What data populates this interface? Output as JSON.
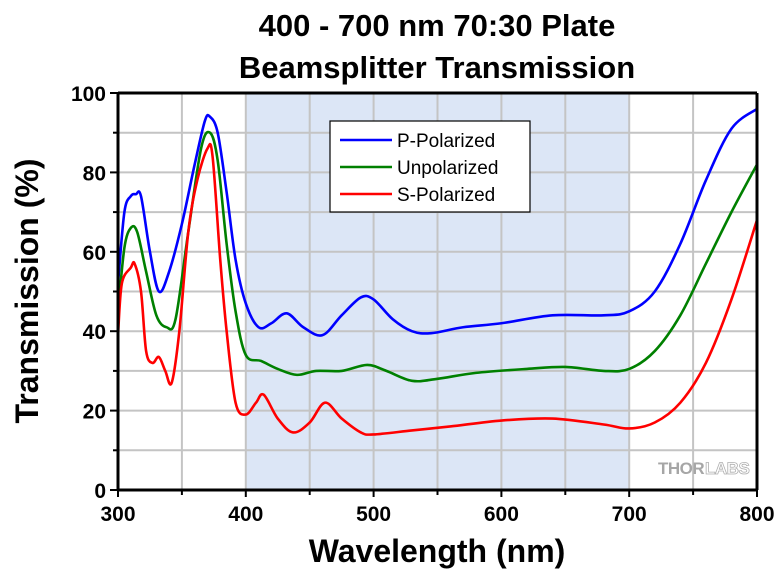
{
  "chart_data": {
    "type": "line",
    "title": [
      "400 - 700 nm 70:30 Plate",
      "Beamsplitter Transmission"
    ],
    "xlabel": "Wavelength (nm)",
    "ylabel": "Transmission (%)",
    "xlim": [
      300,
      800
    ],
    "ylim": [
      0,
      100
    ],
    "xticks": [
      300,
      400,
      500,
      600,
      700,
      800
    ],
    "yticks": [
      0,
      20,
      40,
      60,
      80,
      100
    ],
    "x_minor_step": 50,
    "y_minor_step": 10,
    "grid": true,
    "highlight_band": {
      "range": [
        400,
        700
      ],
      "color": "#dce6f6",
      "meaning": "design wavelength range"
    },
    "legend": {
      "placement": "top-center",
      "entries": [
        "P-Polarized",
        "Unpolarized",
        "S-Polarized"
      ]
    },
    "watermark": {
      "left": "THOR",
      "right": "LABS"
    },
    "series": [
      {
        "name": "P-Polarized",
        "color": "#0000ff",
        "x": [
          300,
          305,
          310,
          314,
          318,
          325,
          332,
          340,
          350,
          360,
          368,
          372,
          378,
          385,
          392,
          400,
          410,
          420,
          432,
          445,
          460,
          475,
          490,
          500,
          515,
          530,
          545,
          570,
          600,
          640,
          680,
          700,
          720,
          740,
          760,
          780,
          800
        ],
        "y": [
          52,
          70,
          74,
          74.5,
          74,
          60,
          50,
          55,
          67,
          82,
          93,
          94,
          90,
          75,
          58,
          47,
          41,
          42,
          44.5,
          41,
          39,
          44,
          48.5,
          48,
          43,
          40,
          39.5,
          41,
          42,
          44,
          44,
          45,
          50,
          62,
          78,
          91,
          96
        ]
      },
      {
        "name": "Unpolarized",
        "color": "#008000",
        "x": [
          300,
          305,
          310,
          315,
          322,
          330,
          338,
          345,
          355,
          365,
          372,
          378,
          385,
          392,
          400,
          412,
          425,
          440,
          455,
          475,
          495,
          510,
          530,
          550,
          580,
          620,
          650,
          680,
          700,
          720,
          740,
          760,
          780,
          800
        ],
        "y": [
          45,
          61,
          66,
          65,
          55,
          44,
          41,
          43,
          65,
          86,
          90,
          83,
          62,
          45,
          34,
          32.5,
          30.5,
          29,
          30,
          30,
          31.5,
          30,
          27.5,
          28,
          29.5,
          30.5,
          31,
          30,
          30.5,
          35,
          44,
          57,
          70,
          82
        ]
      },
      {
        "name": "S-Polarized",
        "color": "#ff0000",
        "x": [
          300,
          303,
          310,
          313,
          318,
          322,
          327,
          332,
          337,
          342,
          348,
          355,
          362,
          370,
          374,
          380,
          385,
          392,
          400,
          408,
          414,
          425,
          437,
          450,
          462,
          475,
          490,
          500,
          530,
          560,
          600,
          640,
          680,
          700,
          720,
          740,
          760,
          780,
          800
        ],
        "y": [
          39,
          52,
          56,
          57,
          50,
          35,
          32,
          33.5,
          30,
          27,
          40,
          65,
          78,
          86,
          84,
          58,
          40,
          22,
          19,
          22,
          24,
          18,
          14.5,
          17,
          22,
          18,
          14.5,
          14,
          15,
          16,
          17.5,
          18,
          16.5,
          15.5,
          17,
          22,
          32,
          48,
          68
        ]
      }
    ]
  }
}
